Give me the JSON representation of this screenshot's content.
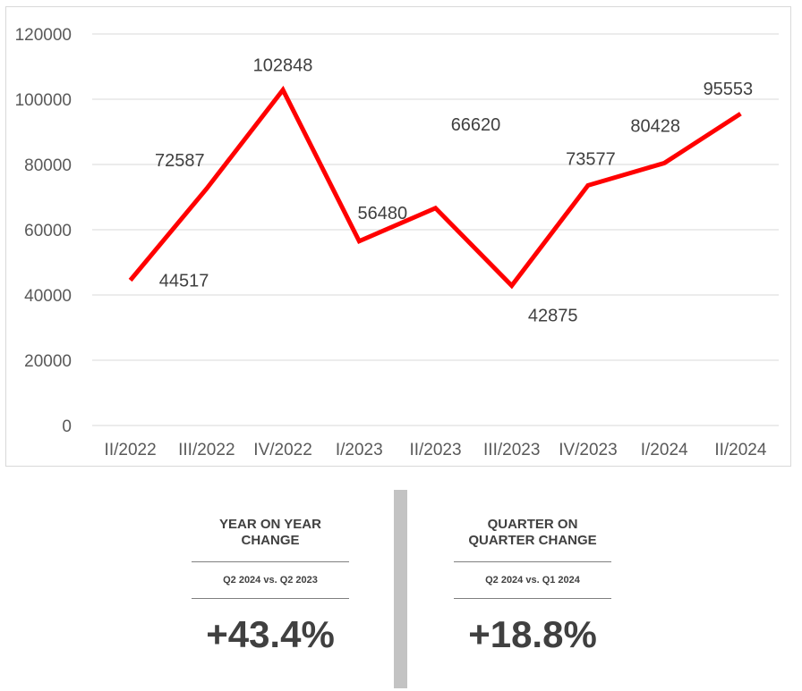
{
  "chart_data": {
    "type": "line",
    "categories": [
      "II/2022",
      "III/2022",
      "IV/2022",
      "I/2023",
      "II/2023",
      "III/2023",
      "IV/2023",
      "I/2024",
      "II/2024"
    ],
    "series": [
      {
        "values": [
          44517,
          72587,
          102848,
          56480,
          66620,
          42875,
          73577,
          80428,
          95553
        ]
      }
    ],
    "data_labels": [
      "44517",
      "72587",
      "102848",
      "56480",
      "66620",
      "42875",
      "73577",
      "80428",
      "95553"
    ],
    "yticks": [
      "0",
      "20000",
      "40000",
      "60000",
      "80000",
      "100000",
      "120000"
    ],
    "ylim": [
      0,
      120000
    ],
    "grid": true,
    "line_color": "#ff0000",
    "title": "",
    "xlabel": "",
    "ylabel": ""
  },
  "stats": {
    "yoy": {
      "title": "YEAR ON YEAR CHANGE",
      "compare": "Q2 2024 vs. Q2 2023",
      "value": "+43.4%"
    },
    "qoq": {
      "title": "QUARTER ON QUARTER CHANGE",
      "compare": "Q2 2024 vs. Q1 2024",
      "value": "+18.8%"
    }
  }
}
